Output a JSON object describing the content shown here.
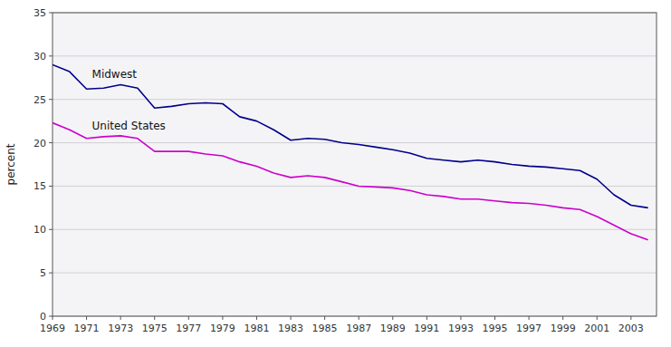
{
  "chart_data": {
    "type": "line",
    "y_label": "percent",
    "x": [
      1969,
      1970,
      1971,
      1972,
      1973,
      1974,
      1975,
      1976,
      1977,
      1978,
      1979,
      1980,
      1981,
      1982,
      1983,
      1984,
      1985,
      1986,
      1987,
      1988,
      1989,
      1990,
      1991,
      1992,
      1993,
      1994,
      1995,
      1996,
      1997,
      1998,
      1999,
      2000,
      2001,
      2002,
      2003,
      2004
    ],
    "series": [
      {
        "name": "Midwest",
        "color": "#00008B",
        "values": [
          29.0,
          28.2,
          26.2,
          26.3,
          26.7,
          26.3,
          24.0,
          24.2,
          24.5,
          24.6,
          24.5,
          23.0,
          22.5,
          21.5,
          20.3,
          20.5,
          20.4,
          20.0,
          19.8,
          19.5,
          19.2,
          18.8,
          18.2,
          18.0,
          17.8,
          18.0,
          17.8,
          17.5,
          17.3,
          17.2,
          17.0,
          16.8,
          15.8,
          14.0,
          12.8,
          12.5
        ]
      },
      {
        "name": "United States",
        "color": "#cc00cc",
        "values": [
          22.3,
          21.5,
          20.5,
          20.7,
          20.8,
          20.5,
          19.0,
          19.0,
          19.0,
          18.7,
          18.5,
          17.8,
          17.3,
          16.5,
          16.0,
          16.2,
          16.0,
          15.5,
          15.0,
          14.9,
          14.8,
          14.5,
          14.0,
          13.8,
          13.5,
          13.5,
          13.3,
          13.1,
          13.0,
          12.8,
          12.5,
          12.3,
          11.5,
          10.5,
          9.5,
          8.8
        ]
      }
    ],
    "xlim": [
      1969,
      2004.5
    ],
    "xticks": [
      1969,
      1971,
      1973,
      1975,
      1977,
      1979,
      1981,
      1983,
      1985,
      1987,
      1989,
      1991,
      1993,
      1995,
      1997,
      1999,
      2001,
      2003
    ],
    "ylim": [
      0,
      35
    ],
    "yticks": [
      0,
      5,
      10,
      15,
      20,
      25,
      30,
      35
    ],
    "grid": true
  }
}
